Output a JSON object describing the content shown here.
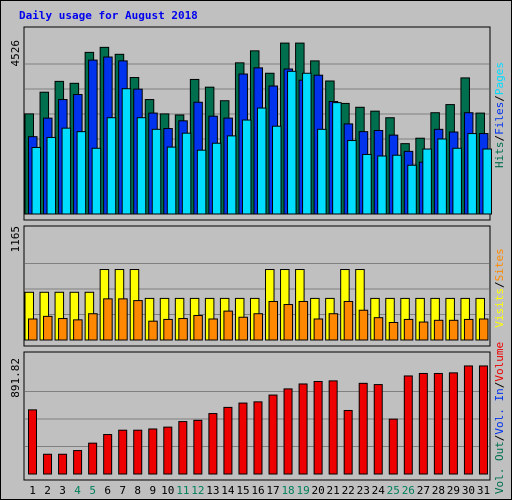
{
  "title": "Daily usage for August 2018",
  "colors": {
    "background": "#c0c0c0",
    "hits": "#006f4e",
    "files": "#0033ee",
    "pages": "#00ddff",
    "visits": "#ffff00",
    "sites": "#ff8800",
    "volume": "#ee0000",
    "title": "#0000ee",
    "weekend_day": "#00805c",
    "weekday": "#000000"
  },
  "chart_data": [
    {
      "type": "bar",
      "name": "traffic",
      "axis_max_label": "4526",
      "ylim": [
        0,
        4526
      ],
      "categories": [
        "1",
        "2",
        "3",
        "4",
        "5",
        "6",
        "7",
        "8",
        "9",
        "10",
        "11",
        "12",
        "13",
        "14",
        "15",
        "16",
        "17",
        "18",
        "19",
        "20",
        "21",
        "22",
        "23",
        "24",
        "25",
        "26",
        "27",
        "28",
        "29",
        "30",
        "31"
      ],
      "series": [
        {
          "name": "Hits",
          "values": [
            2590,
            3150,
            3430,
            3380,
            4180,
            4310,
            4130,
            3530,
            2960,
            2590,
            2560,
            3480,
            3280,
            2930,
            3910,
            4220,
            3640,
            4420,
            4420,
            3960,
            3440,
            2860,
            2760,
            2660,
            2490,
            1820,
            1960,
            2620,
            2830,
            3520,
            2610
          ]
        },
        {
          "name": "Files",
          "values": [
            2000,
            2480,
            2960,
            3090,
            3980,
            4060,
            3960,
            3230,
            2610,
            2210,
            2410,
            2890,
            2530,
            2480,
            3620,
            3780,
            3310,
            3750,
            3460,
            3590,
            2910,
            2330,
            2130,
            2160,
            2040,
            1620,
            1340,
            2190,
            2120,
            2620,
            2080
          ]
        },
        {
          "name": "Pages",
          "values": [
            1720,
            1980,
            2220,
            2130,
            1700,
            2490,
            3240,
            2490,
            2190,
            1730,
            2090,
            1650,
            1830,
            2020,
            2430,
            2740,
            2270,
            3690,
            3640,
            2190,
            2880,
            1900,
            1540,
            1500,
            1520,
            1260,
            1680,
            1940,
            1700,
            2080,
            1680
          ]
        }
      ]
    },
    {
      "type": "bar",
      "name": "visitors",
      "axis_max_label": "1165",
      "ylim": [
        0,
        1165
      ],
      "categories": [
        "1",
        "2",
        "3",
        "4",
        "5",
        "6",
        "7",
        "8",
        "9",
        "10",
        "11",
        "12",
        "13",
        "14",
        "15",
        "16",
        "17",
        "18",
        "19",
        "20",
        "21",
        "22",
        "23",
        "24",
        "25",
        "26",
        "27",
        "28",
        "29",
        "30",
        "31"
      ],
      "series": [
        {
          "name": "Visits",
          "values": [
            545,
            545,
            545,
            545,
            545,
            805,
            805,
            805,
            475,
            475,
            475,
            475,
            475,
            475,
            475,
            475,
            805,
            805,
            805,
            475,
            475,
            805,
            805,
            475,
            475,
            475,
            475,
            475,
            475,
            475,
            475
          ]
        },
        {
          "name": "Sites",
          "values": [
            240,
            270,
            245,
            230,
            300,
            470,
            470,
            450,
            215,
            235,
            245,
            280,
            240,
            330,
            260,
            300,
            440,
            405,
            440,
            240,
            300,
            440,
            340,
            255,
            200,
            235,
            205,
            225,
            225,
            235,
            240
          ]
        }
      ],
      "visits_values_note": ""
    },
    {
      "type": "bar",
      "name": "volume",
      "axis_max_label": "891.82",
      "ylim": [
        0,
        891.82
      ],
      "categories": [
        "1",
        "2",
        "3",
        "4",
        "5",
        "6",
        "7",
        "8",
        "9",
        "10",
        "11",
        "12",
        "13",
        "14",
        "15",
        "16",
        "17",
        "18",
        "19",
        "20",
        "21",
        "22",
        "23",
        "24",
        "25",
        "26",
        "27",
        "28",
        "29",
        "30",
        "31"
      ],
      "series": [
        {
          "name": "Volume",
          "values": [
            520,
            160,
            160,
            190,
            250,
            320,
            355,
            355,
            365,
            380,
            425,
            435,
            490,
            540,
            575,
            585,
            640,
            690,
            730,
            750,
            755,
            515,
            735,
            725,
            445,
            795,
            815,
            815,
            820,
            876,
            876
          ]
        }
      ]
    }
  ],
  "x_labels": [
    {
      "text": "1",
      "weekend": false
    },
    {
      "text": "2",
      "weekend": false
    },
    {
      "text": "3",
      "weekend": false
    },
    {
      "text": "4",
      "weekend": true
    },
    {
      "text": "5",
      "weekend": true
    },
    {
      "text": "6",
      "weekend": false
    },
    {
      "text": "7",
      "weekend": false
    },
    {
      "text": "8",
      "weekend": false
    },
    {
      "text": "9",
      "weekend": false
    },
    {
      "text": "10",
      "weekend": false
    },
    {
      "text": "11",
      "weekend": true
    },
    {
      "text": "12",
      "weekend": true
    },
    {
      "text": "13",
      "weekend": false
    },
    {
      "text": "14",
      "weekend": false
    },
    {
      "text": "15",
      "weekend": false
    },
    {
      "text": "16",
      "weekend": false
    },
    {
      "text": "17",
      "weekend": false
    },
    {
      "text": "18",
      "weekend": true
    },
    {
      "text": "19",
      "weekend": true
    },
    {
      "text": "20",
      "weekend": false
    },
    {
      "text": "21",
      "weekend": false
    },
    {
      "text": "22",
      "weekend": false
    },
    {
      "text": "23",
      "weekend": false
    },
    {
      "text": "24",
      "weekend": false
    },
    {
      "text": "25",
      "weekend": true
    },
    {
      "text": "26",
      "weekend": true
    },
    {
      "text": "27",
      "weekend": false
    },
    {
      "text": "28",
      "weekend": false
    },
    {
      "text": "29",
      "weekend": false
    },
    {
      "text": "30",
      "weekend": false
    },
    {
      "text": "31",
      "weekend": false
    }
  ],
  "legends": {
    "traffic": [
      {
        "text": "Hits",
        "color": "#006f4e"
      },
      {
        "text": "/",
        "color": "#000000"
      },
      {
        "text": "Files",
        "color": "#0033ee"
      },
      {
        "text": "/",
        "color": "#000000"
      },
      {
        "text": "Pages",
        "color": "#00ddff"
      }
    ],
    "visitors": [
      {
        "text": "Visits",
        "color": "#ffff00"
      },
      {
        "text": "/",
        "color": "#000000"
      },
      {
        "text": "Sites",
        "color": "#ff8800"
      }
    ],
    "volume": [
      {
        "text": "Vol. Out",
        "color": "#006f4e"
      },
      {
        "text": "/",
        "color": "#000000"
      },
      {
        "text": "Vol. In",
        "color": "#0033ee"
      },
      {
        "text": "/",
        "color": "#000000"
      },
      {
        "text": "Volume",
        "color": "#ee0000"
      }
    ]
  }
}
